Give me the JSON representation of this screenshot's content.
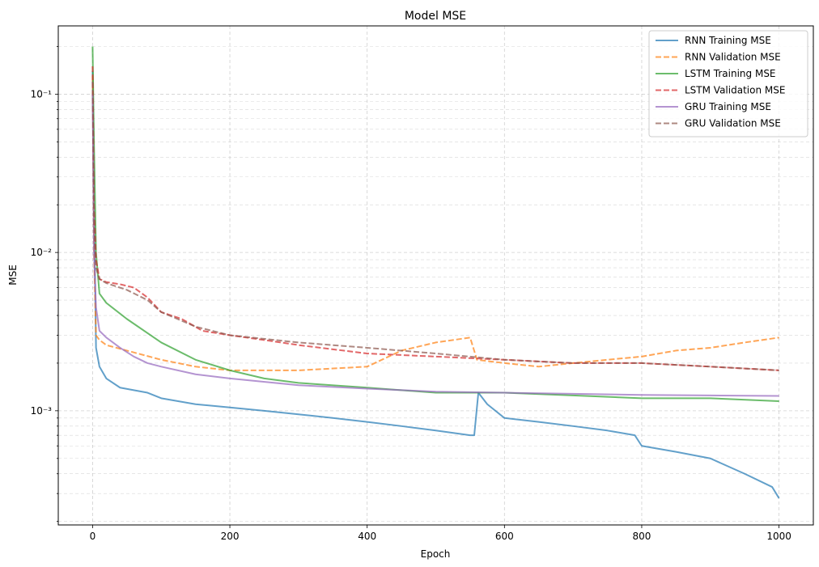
{
  "chart_data": {
    "type": "line",
    "title": "Model MSE",
    "xlabel": "Epoch",
    "ylabel": "MSE",
    "xlim": [
      -50,
      1050
    ],
    "ylim": [
      0.00019,
      0.27
    ],
    "yscale": "log",
    "grid": true,
    "legend_position": "top-right",
    "xticks": [
      0,
      200,
      400,
      600,
      800,
      1000
    ],
    "xtick_labels": [
      "0",
      "200",
      "400",
      "600",
      "800",
      "1000"
    ],
    "yticks": [
      0.001,
      0.01,
      0.1
    ],
    "ytick_labels": [
      "10⁻³",
      "10⁻²",
      "10⁻¹"
    ],
    "series": [
      {
        "name": "RNN Training MSE",
        "color": "#1f77b4",
        "style": "solid",
        "x": [
          0,
          2,
          5,
          10,
          20,
          40,
          60,
          80,
          100,
          150,
          200,
          250,
          300,
          350,
          400,
          450,
          500,
          550,
          556,
          562,
          575,
          600,
          650,
          700,
          750,
          790,
          800,
          850,
          900,
          950,
          990,
          1000
        ],
        "y": [
          0.14,
          0.02,
          0.0025,
          0.0019,
          0.0016,
          0.0014,
          0.00135,
          0.0013,
          0.0012,
          0.0011,
          0.00105,
          0.001,
          0.00095,
          0.0009,
          0.00085,
          0.0008,
          0.00075,
          0.0007,
          0.0007,
          0.0013,
          0.0011,
          0.0009,
          0.00085,
          0.0008,
          0.00075,
          0.0007,
          0.0006,
          0.00055,
          0.0005,
          0.0004,
          0.00033,
          0.00028
        ]
      },
      {
        "name": "RNN Validation MSE",
        "color": "#ff7f0e",
        "style": "dashed",
        "x": [
          0,
          2,
          5,
          10,
          20,
          50,
          100,
          150,
          200,
          300,
          400,
          450,
          500,
          550,
          560,
          600,
          650,
          700,
          750,
          800,
          850,
          900,
          950,
          1000
        ],
        "y": [
          0.13,
          0.01,
          0.003,
          0.0028,
          0.0026,
          0.0024,
          0.0021,
          0.0019,
          0.0018,
          0.0018,
          0.0019,
          0.0024,
          0.0027,
          0.0029,
          0.0021,
          0.002,
          0.0019,
          0.002,
          0.0021,
          0.0022,
          0.0024,
          0.0025,
          0.0027,
          0.0029
        ]
      },
      {
        "name": "LSTM Training MSE",
        "color": "#2ca02c",
        "style": "solid",
        "x": [
          0,
          2,
          5,
          10,
          20,
          50,
          100,
          150,
          200,
          250,
          300,
          400,
          500,
          600,
          700,
          800,
          900,
          1000
        ],
        "y": [
          0.2,
          0.05,
          0.01,
          0.0055,
          0.0048,
          0.0038,
          0.0027,
          0.0021,
          0.0018,
          0.0016,
          0.0015,
          0.0014,
          0.0013,
          0.0013,
          0.00125,
          0.0012,
          0.0012,
          0.00115
        ]
      },
      {
        "name": "LSTM Validation MSE",
        "color": "#d62728",
        "style": "dashed",
        "x": [
          0,
          2,
          5,
          10,
          20,
          40,
          60,
          80,
          100,
          130,
          160,
          200,
          250,
          300,
          400,
          500,
          600,
          700,
          800,
          900,
          1000
        ],
        "y": [
          0.15,
          0.02,
          0.009,
          0.0068,
          0.0065,
          0.0063,
          0.006,
          0.0052,
          0.0042,
          0.0038,
          0.0032,
          0.003,
          0.0028,
          0.0026,
          0.0023,
          0.0022,
          0.0021,
          0.002,
          0.002,
          0.0019,
          0.0018
        ]
      },
      {
        "name": "GRU Training MSE",
        "color": "#9467bd",
        "style": "solid",
        "x": [
          0,
          2,
          5,
          10,
          20,
          40,
          60,
          80,
          100,
          150,
          200,
          300,
          400,
          500,
          600,
          700,
          800,
          900,
          1000
        ],
        "y": [
          0.1,
          0.01,
          0.0045,
          0.0032,
          0.0029,
          0.0025,
          0.0022,
          0.002,
          0.0019,
          0.0017,
          0.0016,
          0.00145,
          0.00138,
          0.00132,
          0.0013,
          0.00128,
          0.00126,
          0.00125,
          0.00124
        ]
      },
      {
        "name": "GRU Validation MSE",
        "color": "#8c564b",
        "style": "dashed",
        "x": [
          0,
          2,
          5,
          10,
          20,
          50,
          80,
          100,
          150,
          200,
          300,
          400,
          500,
          600,
          700,
          800,
          900,
          1000
        ],
        "y": [
          0.12,
          0.015,
          0.008,
          0.0068,
          0.0064,
          0.0058,
          0.005,
          0.0042,
          0.0034,
          0.003,
          0.0027,
          0.0025,
          0.0023,
          0.0021,
          0.002,
          0.002,
          0.0019,
          0.0018
        ]
      }
    ]
  }
}
